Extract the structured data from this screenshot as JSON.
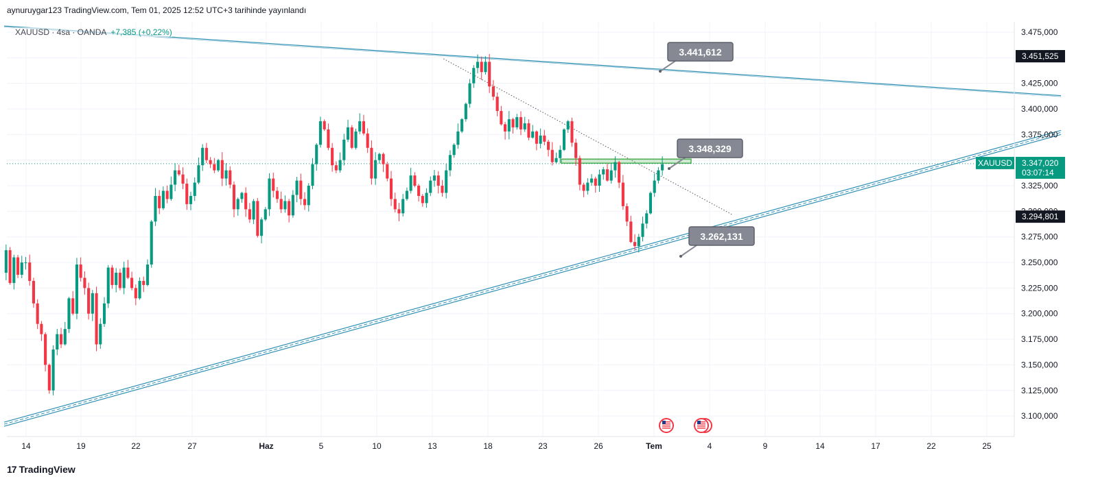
{
  "header": {
    "published": "aynuruygar123 TradingView.com, Tem 01, 2025 12:52 UTC+3 tarihinde yayınlandı"
  },
  "legend": {
    "symbol": "XAUUSD · 4sa · OANDA",
    "change": "+7,385 (+0,22%)"
  },
  "footer": {
    "brand": "TradingView",
    "logo": "17"
  },
  "colors": {
    "up": "#089981",
    "down": "#f23645",
    "trendline": "#2f8fb3",
    "zone": "#4caf50",
    "callout": "#868993",
    "price_tag": "#089981",
    "label_tag": "#131722"
  },
  "price_tags": {
    "current": {
      "symbol": "XAUUSD",
      "price": "3.347,020",
      "countdown": "03:07:14"
    },
    "upper_line": "3.451,525",
    "lower_line": "3.294,801"
  },
  "callouts": [
    "3.441,612",
    "3.348,329",
    "3.262,131"
  ],
  "events": [
    {
      "icon": "us-flag-icon",
      "date": "Haz 30"
    },
    {
      "icon": "us-flag-icon",
      "date": "Tem 03"
    }
  ],
  "chart_data": {
    "type": "candlestick",
    "ylim": [
      3080,
      3485
    ],
    "y_ticks": [
      {
        "v": 3475,
        "label": "3.475,000"
      },
      {
        "v": 3450,
        "label": "3.450,000"
      },
      {
        "v": 3425,
        "label": "3.425,000"
      },
      {
        "v": 3400,
        "label": "3.400,000"
      },
      {
        "v": 3375,
        "label": "3.375,000"
      },
      {
        "v": 3350,
        "label": "3.350,000"
      },
      {
        "v": 3325,
        "label": "3.325,000"
      },
      {
        "v": 3300,
        "label": "3.300,000"
      },
      {
        "v": 3275,
        "label": "3.275,000"
      },
      {
        "v": 3250,
        "label": "3.250,000"
      },
      {
        "v": 3225,
        "label": "3.225,000"
      },
      {
        "v": 3200,
        "label": "3.200,000"
      },
      {
        "v": 3175,
        "label": "3.175,000"
      },
      {
        "v": 3150,
        "label": "3.150,000"
      },
      {
        "v": 3125,
        "label": "3.125,000"
      },
      {
        "v": 3100,
        "label": "3.100,000"
      }
    ],
    "x_ticks": [
      {
        "date": "May 14",
        "label": "14"
      },
      {
        "date": "May 19",
        "label": "19"
      },
      {
        "date": "May 22",
        "label": "22"
      },
      {
        "date": "May 27",
        "label": "27"
      },
      {
        "date": "Haz 01",
        "label": "Haz",
        "bold": true
      },
      {
        "date": "Haz 05",
        "label": "5"
      },
      {
        "date": "Haz 10",
        "label": "10"
      },
      {
        "date": "Haz 13",
        "label": "13"
      },
      {
        "date": "Haz 18",
        "label": "18"
      },
      {
        "date": "Haz 23",
        "label": "23"
      },
      {
        "date": "Haz 26",
        "label": "26"
      },
      {
        "date": "Tem 01",
        "label": "Tem",
        "bold": true
      },
      {
        "date": "Tem 04",
        "label": "4"
      },
      {
        "date": "Tem 09",
        "label": "9"
      },
      {
        "date": "Tem 14",
        "label": "14"
      },
      {
        "date": "Tem 17",
        "label": "17"
      },
      {
        "date": "Tem 22",
        "label": "22"
      },
      {
        "date": "Tem 25",
        "label": "25"
      }
    ],
    "path": [
      [
        3240,
        3262,
        3230,
        3255,
        3238,
        3250
      ],
      [
        3250,
        3232,
        3210,
        3190,
        3180,
        3150,
        3125,
        3165,
        3180,
        3170
      ],
      [
        3185,
        3215,
        3200,
        3248,
        3235,
        3225,
        3200,
        3220,
        3170,
        3190
      ],
      [
        3210,
        3245,
        3228,
        3240,
        3225,
        3245,
        3235,
        3225,
        3215,
        3232
      ],
      [
        3228,
        3248,
        3290,
        3315,
        3303,
        3320,
        3312,
        3326,
        3340,
        3336
      ],
      [
        3327,
        3307,
        3315,
        3328,
        3345,
        3362,
        3350,
        3346,
        3340,
        3350
      ],
      [
        3332,
        3340,
        3326,
        3302,
        3312,
        3318,
        3302,
        3292,
        3310,
        3276
      ],
      [
        3292,
        3302,
        3332,
        3320,
        3312,
        3302,
        3310,
        3296,
        3316,
        3330
      ],
      [
        3312,
        3306,
        3325,
        3346,
        3365,
        3388,
        3380,
        3362,
        3345,
        3340
      ],
      [
        3350,
        3370,
        3382,
        3362,
        3378,
        3388,
        3376,
        3362,
        3332,
        3350
      ],
      [
        3356,
        3346,
        3332,
        3312,
        3302,
        3298,
        3312,
        3320,
        3335,
        3325
      ],
      [
        3315,
        3308,
        3318,
        3330,
        3335,
        3325,
        3318,
        3340,
        3355,
        3365
      ],
      [
        3378,
        3390,
        3405,
        3425,
        3440,
        3446,
        3436,
        3446,
        3422,
        3412
      ],
      [
        3398,
        3385,
        3378,
        3390,
        3382,
        3392,
        3380,
        3386,
        3372,
        3378
      ],
      [
        3366,
        3374,
        3368,
        3360,
        3348,
        3352,
        3360,
        3380,
        3388,
        3367
      ],
      [
        3352,
        3326,
        3320,
        3328,
        3332,
        3325,
        3336,
        3341,
        3330,
        3340
      ],
      [
        3348,
        3328,
        3305,
        3290,
        3270,
        3266,
        3275,
        3288,
        3298,
        3318
      ],
      [
        3330,
        3340,
        3346
      ]
    ],
    "trendlines": [
      {
        "name": "upper-resistance",
        "start": {
          "date": "May 12",
          "price": 3481
        },
        "end": {
          "date": "Tem 29",
          "price": 3413
        }
      },
      {
        "name": "lower-support",
        "start": {
          "date": "May 12",
          "price": 3092
        },
        "end": {
          "date": "Tem 29",
          "price": 3377
        }
      },
      {
        "name": "dotted-trendline",
        "start": {
          "date": "Haz 14",
          "price": 3449
        },
        "end": {
          "date": "Tem 06",
          "price": 3297
        }
      }
    ],
    "zone": {
      "start": "Haz 24",
      "end": "Tem 03",
      "top": 3351,
      "bottom": 3347
    }
  }
}
